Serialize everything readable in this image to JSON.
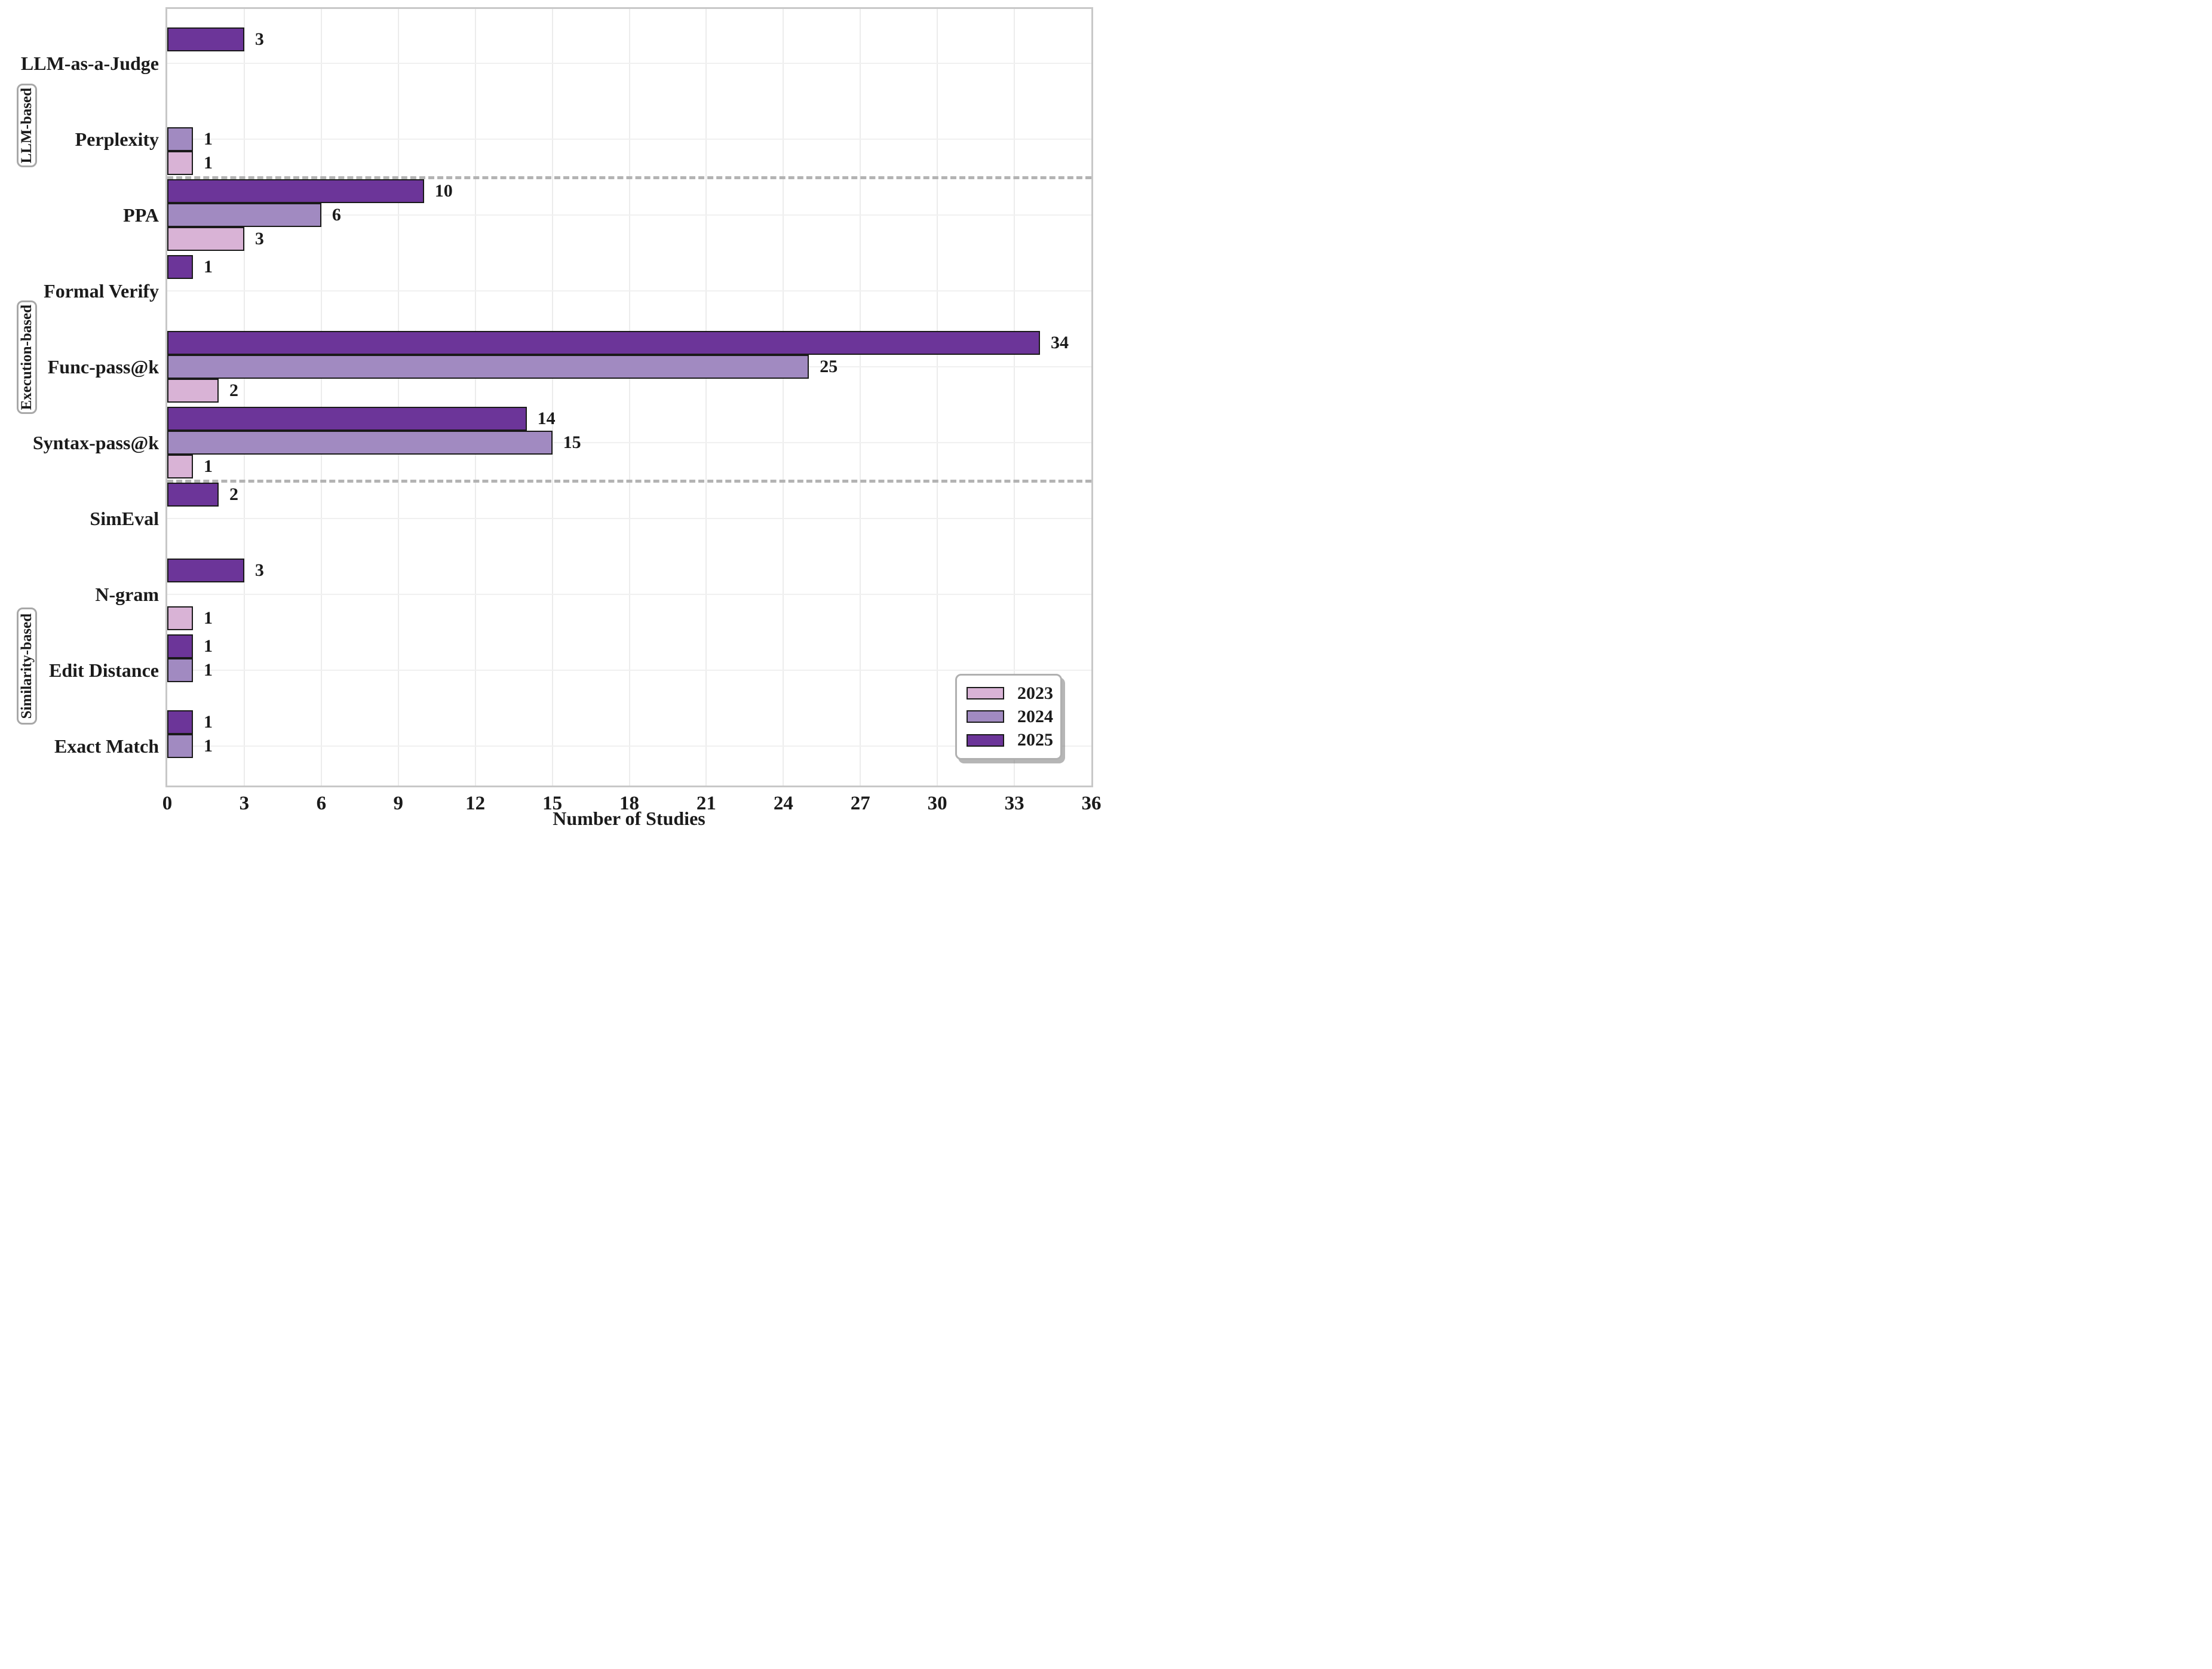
{
  "chart_data": {
    "type": "bar",
    "orientation": "horizontal",
    "xlabel": "Number of Studies",
    "xlim": [
      0,
      36
    ],
    "xticks": [
      "0",
      "3",
      "6",
      "9",
      "12",
      "15",
      "18",
      "21",
      "24",
      "27",
      "30",
      "33",
      "36"
    ],
    "grid": true,
    "categories": [
      "LLM-as-a-Judge",
      "Perplexity",
      "PPA",
      "Formal Verify",
      "Func-pass@k",
      "Syntax-pass@k",
      "SimEval",
      "N-gram",
      "Edit Distance",
      "Exact Match"
    ],
    "series": [
      {
        "name": "2023",
        "color": "#d9b3d6",
        "values": [
          null,
          1,
          3,
          null,
          2,
          1,
          null,
          1,
          null,
          null
        ]
      },
      {
        "name": "2024",
        "color": "#a18ac1",
        "values": [
          null,
          1,
          6,
          null,
          25,
          15,
          null,
          null,
          1,
          1
        ]
      },
      {
        "name": "2025",
        "color": "#6c3599",
        "values": [
          3,
          null,
          10,
          1,
          34,
          14,
          2,
          3,
          1,
          1
        ]
      }
    ],
    "slot_order_top_to_bottom": [
      "2025",
      "2024",
      "2023"
    ],
    "group_sections": [
      {
        "label": "LLM-based",
        "rows": [
          0,
          1
        ]
      },
      {
        "label": "Execution-based",
        "rows": [
          2,
          5
        ]
      },
      {
        "label": "Similarity-based",
        "rows": [
          6,
          9
        ]
      }
    ],
    "separators_after_rows": [
      1,
      5
    ],
    "legend": {
      "position": "lower right",
      "entries": [
        "2023",
        "2024",
        "2025"
      ]
    },
    "colors": {
      "bar_edge": "#1a1a1a",
      "gridline": "#ececec",
      "frame": "#c8c8c8",
      "separator": "#b3b3b3",
      "text": "#1b1b1b"
    }
  }
}
